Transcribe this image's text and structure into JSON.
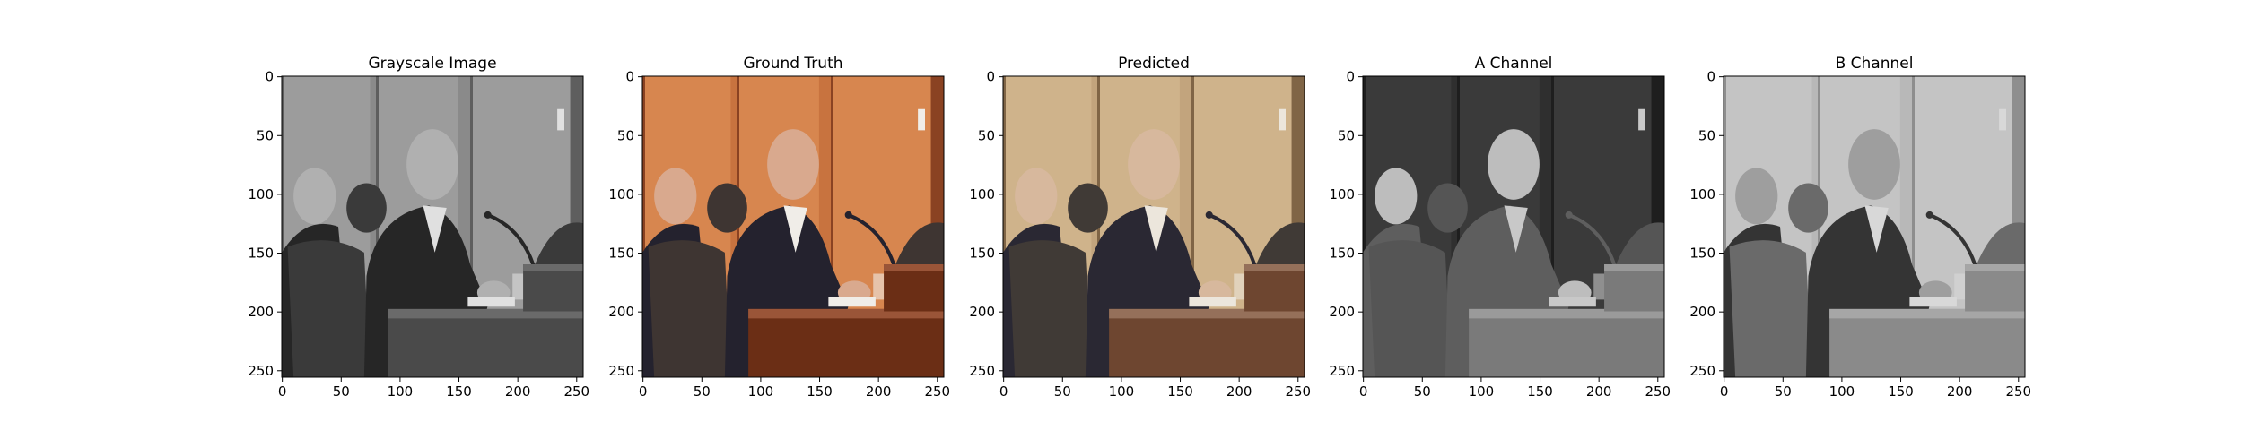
{
  "panels": [
    {
      "title": "Grayscale Image",
      "image": "grayscale photo of men seated at a hearing table",
      "palette": "gray"
    },
    {
      "title": "Ground Truth",
      "image": "color photo of men seated at a hearing table",
      "palette": "truth"
    },
    {
      "title": "Predicted",
      "image": "desaturated color photo of men seated at a hearing table",
      "palette": "pred"
    },
    {
      "title": "A Channel",
      "image": "grayscale A channel map",
      "palette": "achan"
    },
    {
      "title": "B Channel",
      "image": "grayscale B channel map",
      "palette": "bchan"
    }
  ],
  "axes": {
    "x_ticks": [
      0,
      50,
      100,
      150,
      200,
      250
    ],
    "y_ticks": [
      0,
      50,
      100,
      150,
      200,
      250
    ],
    "pixel_extent": [
      256,
      256
    ]
  },
  "palettes": {
    "gray": {
      "wall": "#8a8a8a",
      "panel": "#9c9c9c",
      "edge": "#5e5e5e",
      "suit": "#262626",
      "face": "#b0b0b0",
      "chair": "#3a3a3a",
      "desk": "#4a4a4a",
      "deskTop": "#6a6a6a",
      "paper": "#e0e0e0"
    },
    "truth": {
      "wall": "#c8733f",
      "panel": "#d7864f",
      "edge": "#8a4222",
      "suit": "#24222e",
      "face": "#d9a98e",
      "chair": "#3e3532",
      "desk": "#6b2e15",
      "deskTop": "#9a5538",
      "paper": "#f0ede8"
    },
    "pred": {
      "wall": "#c2a47d",
      "panel": "#cfb38b",
      "edge": "#806546",
      "suit": "#2a2833",
      "face": "#d7b89d",
      "chair": "#403a36",
      "desk": "#6e4630",
      "deskTop": "#95705a",
      "paper": "#ece6dc"
    },
    "achan": {
      "wall": "#2f2f2f",
      "panel": "#3a3a3a",
      "edge": "#1e1e1e",
      "suit": "#5e5e5e",
      "face": "#bdbdbd",
      "chair": "#555555",
      "desk": "#7a7a7a",
      "deskTop": "#9a9a9a",
      "paper": "#c8c8c8"
    },
    "bchan": {
      "wall": "#b8b8b8",
      "panel": "#c4c4c4",
      "edge": "#8e8e8e",
      "suit": "#343434",
      "face": "#9e9e9e",
      "chair": "#6a6a6a",
      "desk": "#8a8a8a",
      "deskTop": "#a6a6a6",
      "paper": "#d8d8d8"
    }
  }
}
